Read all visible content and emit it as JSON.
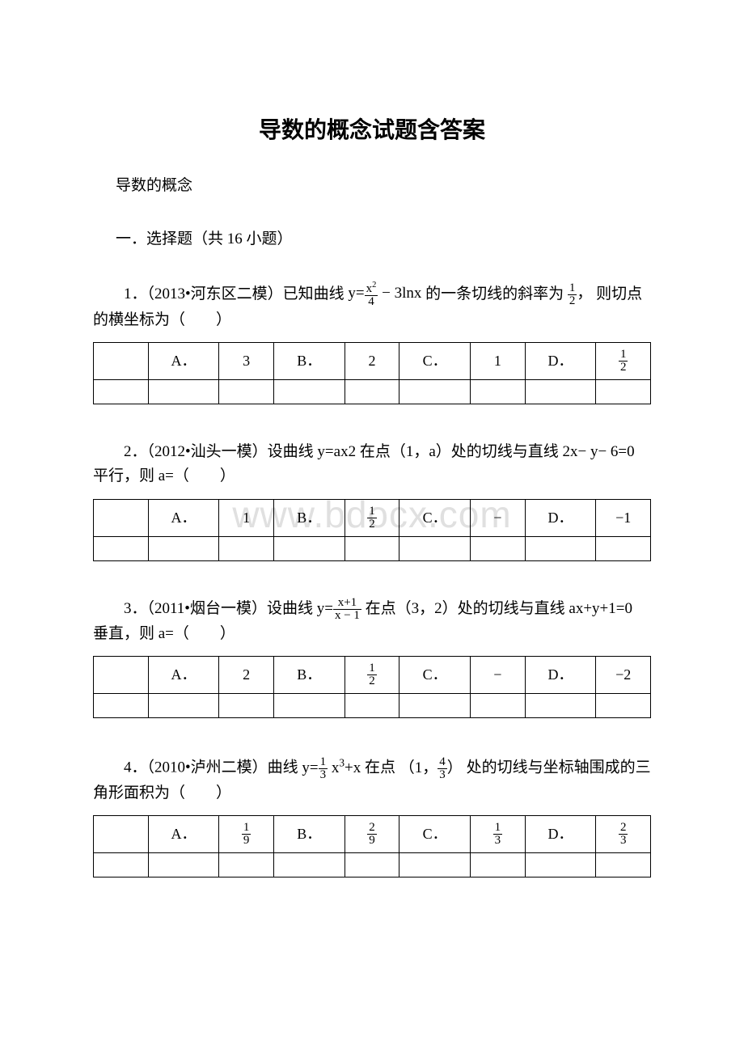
{
  "title": "导数的概念试题含答案",
  "subtitle": "导数的概念",
  "section_heading": "一．选择题（共 16 小题）",
  "watermark": "www.bdocx.com",
  "questions": [
    {
      "prefix": "1．（2013•河东区二模）已知曲线",
      "formula_html": "y=<span class='inline-frac'><span class='num'>x<sup>2</sup></span><span class='den'>4</span></span> − 3lnx",
      "mid": "的一条切线的斜率为",
      "mid_frac_html": "<span class='inline-frac'><span class='num'>1</span><span class='den'>2</span></span>，",
      "suffix": "则切点的横坐标为（　　）",
      "options": {
        "A": "3",
        "B": "2",
        "C": "1",
        "D_html": "<span class='inline-frac'><span class='num'>1</span><span class='den'>2</span></span>"
      }
    },
    {
      "prefix": "2．（2012•汕头一模）设曲线 y=ax2 在点（1，a）处的切线与直线 2x− y− 6=0 平行，则 a=（　　）",
      "formula_html": "",
      "mid": "",
      "mid_frac_html": "",
      "suffix": "",
      "options": {
        "A": "1",
        "B_html": "<span class='inline-frac'><span class='num'>1</span><span class='den'>2</span></span>",
        "C": "−",
        "D": "−1"
      }
    },
    {
      "prefix": "3．（2011•烟台一模）设曲线",
      "formula_html": "y=<span class='inline-frac'><span class='num'>x+1</span><span class='den'>x − 1</span></span>",
      "mid": "在点（3，2）处的切线与直线 ax+y+1=0 垂直，则 a=（　　）",
      "mid_frac_html": "",
      "suffix": "",
      "options": {
        "A": "2",
        "B_html": "<span class='inline-frac'><span class='num'>1</span><span class='den'>2</span></span>",
        "C": "−",
        "D": "−2"
      }
    },
    {
      "prefix": "4．（2010•泸州二模）曲线",
      "formula_html": "y=<span class='inline-frac'><span class='num'>1</span><span class='den'>3</span></span> x<sup>3</sup>+x",
      "mid": "在点",
      "mid_frac_html": "（1，<span class='inline-frac'><span class='num'>4</span><span class='den'>3</span></span>）",
      "suffix": "处的切线与坐标轴围成的三角形面积为（　　）",
      "options": {
        "A_html": "<span class='inline-frac'><span class='num'>1</span><span class='den'>9</span></span>",
        "B_html": "<span class='inline-frac'><span class='num'>2</span><span class='den'>9</span></span>",
        "C_html": "<span class='inline-frac'><span class='num'>1</span><span class='den'>3</span></span>",
        "D_html": "<span class='inline-frac'><span class='num'>2</span><span class='den'>3</span></span>"
      }
    }
  ],
  "labels": {
    "A": "A．",
    "B": "B．",
    "C": "C．",
    "D": "D．"
  }
}
